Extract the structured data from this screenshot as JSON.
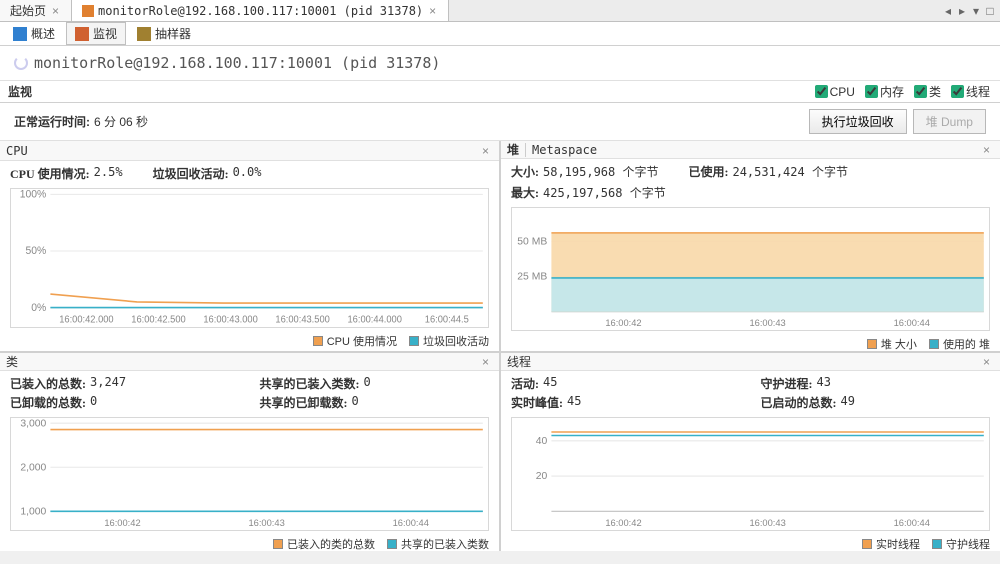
{
  "colors": {
    "orange": "#f0a050",
    "orange_fill": "#f8d8a8",
    "cyan": "#38b0c8",
    "cyan_fill": "#c0e8f0",
    "grid": "#e8e8e8",
    "axis_text": "#888888"
  },
  "top_tabs": [
    {
      "label": "起始页",
      "active": false
    },
    {
      "label": "monitorRole@192.168.100.117:10001 (pid 31378)",
      "active": true
    }
  ],
  "subtabs": [
    {
      "label": "概述",
      "icon_color": "#3080d0"
    },
    {
      "label": "监视",
      "icon_color": "#d06030",
      "active": true
    },
    {
      "label": "抽样器",
      "icon_color": "#a08030"
    }
  ],
  "page_title": "monitorRole@192.168.100.117:10001 (pid 31378)",
  "section_label": "监视",
  "checks": [
    {
      "label": "CPU"
    },
    {
      "label": "内存"
    },
    {
      "label": "类"
    },
    {
      "label": "线程"
    }
  ],
  "uptime": {
    "k": "正常运行时间:",
    "v": "6 分 06 秒"
  },
  "buttons": {
    "gc": "执行垃圾回收",
    "dump": "堆 Dump"
  },
  "cpu_panel": {
    "title": "CPU",
    "stats": [
      {
        "k": "CPU 使用情况:",
        "v": "2.5%"
      },
      {
        "k": "垃圾回收活动:",
        "v": "0.0%"
      }
    ],
    "yticks": [
      "100%",
      "50%",
      "0%"
    ],
    "xticks": [
      "16:00:42.000",
      "16:00:42.500",
      "16:00:43.000",
      "16:00:43.500",
      "16:00:44.000",
      "16:00:44.5"
    ],
    "series": {
      "cpu": [
        12,
        5,
        4,
        4,
        4,
        4
      ],
      "gc": [
        0,
        0,
        0,
        0,
        0,
        0
      ]
    },
    "ymax": 100,
    "legend": [
      {
        "label": "CPU 使用情况",
        "color": "#f0a050"
      },
      {
        "label": "垃圾回收活动",
        "color": "#38b0c8"
      }
    ]
  },
  "heap_panel": {
    "title_a": "堆",
    "title_b": "Metaspace",
    "stats": [
      {
        "k": "大小:",
        "v": "58,195,968 个字节"
      },
      {
        "k": "已使用:",
        "v": "24,531,424 个字节"
      },
      {
        "k": "最大:",
        "v": "425,197,568 个字节"
      }
    ],
    "yticks": [
      "50 MB",
      "25 MB"
    ],
    "xticks": [
      "16:00:42",
      "16:00:43",
      "16:00:44"
    ],
    "size_mb": 56,
    "used_mb": 24,
    "ymax": 70,
    "legend": [
      {
        "label": "堆 大小",
        "color": "#f0a050"
      },
      {
        "label": "使用的 堆",
        "color": "#38b0c8"
      }
    ]
  },
  "class_panel": {
    "title": "类",
    "stats": [
      {
        "k": "已装入的总数:",
        "v": "3,247"
      },
      {
        "k": "共享的已装入类数:",
        "v": "0"
      },
      {
        "k": "已卸载的总数:",
        "v": "0"
      },
      {
        "k": "共享的已卸载数:",
        "v": "0"
      }
    ],
    "yticks": [
      "3,000",
      "2,000",
      "1,000"
    ],
    "xticks": [
      "16:00:42",
      "16:00:43",
      "16:00:44"
    ],
    "loaded": 3247,
    "shared": 0,
    "ymax": 3500,
    "legend": [
      {
        "label": "已装入的类的总数",
        "color": "#f0a050"
      },
      {
        "label": "共享的已装入类数",
        "color": "#38b0c8"
      }
    ]
  },
  "thread_panel": {
    "title": "线程",
    "stats": [
      {
        "k": "活动:",
        "v": "45"
      },
      {
        "k": "守护进程:",
        "v": "43"
      },
      {
        "k": "实时峰值:",
        "v": "45"
      },
      {
        "k": "已启动的总数:",
        "v": "49"
      }
    ],
    "yticks": [
      "40",
      "20"
    ],
    "xticks": [
      "16:00:42",
      "16:00:43",
      "16:00:44"
    ],
    "live": 45,
    "daemon": 43,
    "ymax": 50,
    "legend": [
      {
        "label": "实时线程",
        "color": "#f0a050"
      },
      {
        "label": "守护线程",
        "color": "#38b0c8"
      }
    ]
  }
}
